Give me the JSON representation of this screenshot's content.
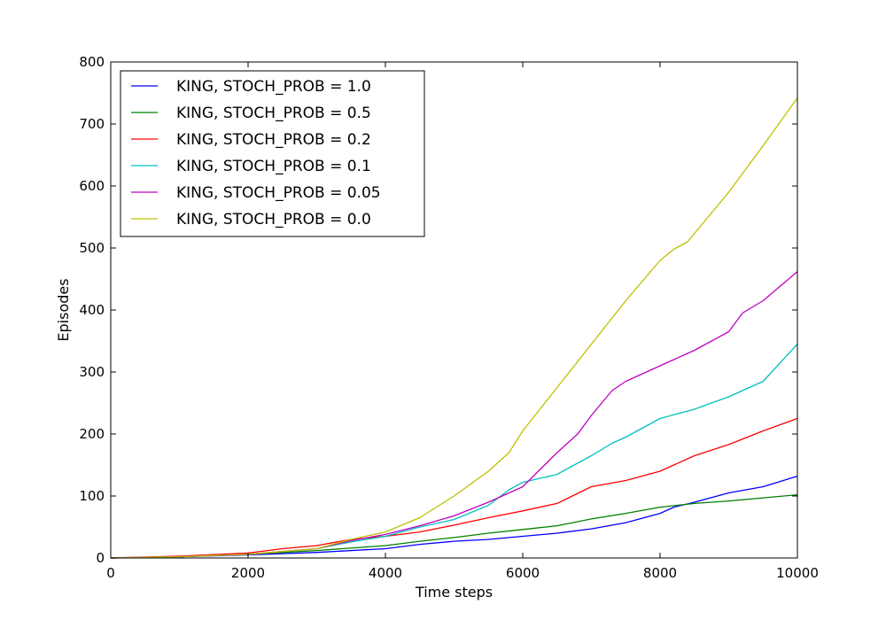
{
  "chart_data": {
    "type": "line",
    "xlabel": "Time steps",
    "ylabel": "Episodes",
    "xlim": [
      0,
      10000
    ],
    "ylim": [
      0,
      800
    ],
    "xticks": [
      0,
      2000,
      4000,
      6000,
      8000,
      10000
    ],
    "yticks": [
      0,
      100,
      200,
      300,
      400,
      500,
      600,
      700,
      800
    ],
    "grid": false,
    "legend_position": "top-left",
    "series": [
      {
        "name": "KING, STOCH_PROB = 1.0",
        "color": "#0000ff",
        "x": [
          0,
          1000,
          2000,
          3000,
          4000,
          4500,
          5000,
          5500,
          6000,
          6500,
          7000,
          7500,
          8000,
          8200,
          8500,
          9000,
          9500,
          10000
        ],
        "y": [
          0,
          2,
          5,
          9,
          15,
          22,
          27,
          30,
          35,
          40,
          47,
          57,
          72,
          82,
          90,
          105,
          115,
          132
        ]
      },
      {
        "name": "KING, STOCH_PROB = 0.5",
        "color": "#008000",
        "x": [
          0,
          1000,
          2000,
          3000,
          4000,
          4500,
          5000,
          5500,
          6000,
          6500,
          7000,
          7500,
          8000,
          8500,
          9000,
          9500,
          10000
        ],
        "y": [
          0,
          2,
          6,
          12,
          20,
          27,
          33,
          40,
          46,
          52,
          63,
          72,
          82,
          88,
          92,
          97,
          102
        ]
      },
      {
        "name": "KING, STOCH_PROB = 0.2",
        "color": "#ff0000",
        "x": [
          0,
          1000,
          2000,
          2500,
          3000,
          3500,
          4000,
          4500,
          5000,
          5500,
          6000,
          6500,
          7000,
          7500,
          8000,
          8500,
          9000,
          9500,
          10000
        ],
        "y": [
          0,
          3,
          8,
          15,
          20,
          30,
          35,
          42,
          53,
          65,
          76,
          88,
          115,
          125,
          140,
          165,
          183,
          205,
          225
        ]
      },
      {
        "name": "KING, STOCH_PROB = 0.1",
        "color": "#00bfbf",
        "x": [
          0,
          1000,
          2000,
          3000,
          3500,
          4000,
          4500,
          5000,
          5500,
          5800,
          6000,
          6500,
          7000,
          7300,
          7500,
          8000,
          8500,
          9000,
          9500,
          10000
        ],
        "y": [
          0,
          2,
          6,
          15,
          26,
          35,
          50,
          62,
          85,
          110,
          122,
          135,
          165,
          185,
          195,
          225,
          240,
          260,
          285,
          345
        ]
      },
      {
        "name": "KING, STOCH_PROB = 0.05",
        "color": "#bf00bf",
        "x": [
          0,
          1000,
          2000,
          3000,
          3500,
          4000,
          4500,
          5000,
          5500,
          6000,
          6500,
          6800,
          7000,
          7300,
          7500,
          8000,
          8500,
          9000,
          9200,
          9500,
          10000
        ],
        "y": [
          0,
          2,
          6,
          15,
          28,
          38,
          52,
          68,
          90,
          115,
          170,
          200,
          230,
          270,
          285,
          310,
          335,
          365,
          395,
          415,
          462
        ]
      },
      {
        "name": "KING, STOCH_PROB = 0.0",
        "color": "#bfbf00",
        "x": [
          0,
          1000,
          2000,
          3000,
          3500,
          4000,
          4500,
          5000,
          5500,
          5800,
          6000,
          6500,
          7000,
          7500,
          8000,
          8200,
          8400,
          9000,
          9500,
          10000
        ],
        "y": [
          0,
          2,
          6,
          15,
          30,
          42,
          65,
          100,
          140,
          170,
          205,
          275,
          345,
          415,
          480,
          498,
          510,
          590,
          665,
          742
        ]
      }
    ]
  }
}
